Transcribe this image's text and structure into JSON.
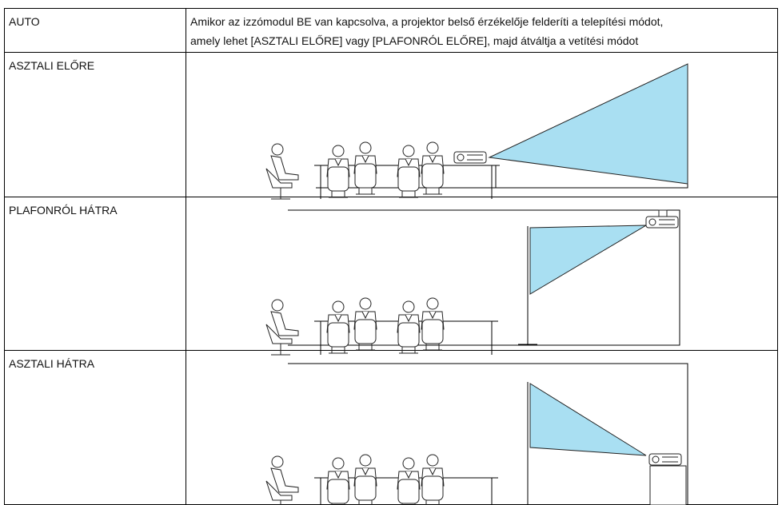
{
  "table": {
    "rows": [
      [
        "AUTO",
        [
          "Amikor az izzómodul BE van kapcsolva, a projektor belső érzékelője felderíti a telepítési módot,",
          "amely lehet [ASZTALI ELŐRE] vagy [PLAFONRÓL ELŐRE], majd átváltja a vetítési módot"
        ]
      ],
      [
        "ASZTALI ELŐRE"
      ],
      [
        "PLAFONRÓL HÁTRA"
      ],
      [
        "ASZTALI HÁTRA"
      ]
    ]
  }
}
